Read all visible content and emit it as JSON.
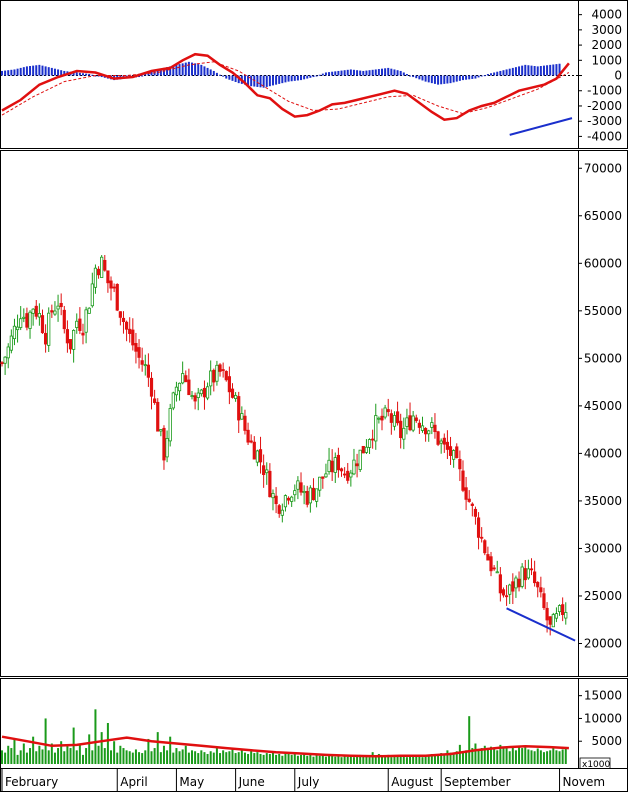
{
  "chart_data": [
    {
      "id": "macd",
      "type": "line",
      "ylim": [
        -4500,
        4700
      ],
      "yticks": [
        -4000,
        -3000,
        -2000,
        -1000,
        0,
        1000,
        2000,
        3000,
        4000
      ],
      "ytick_labels": [
        "-4000",
        "-3000",
        "-2000",
        "-1000",
        "0",
        "1000",
        "2000",
        "3000",
        "4000"
      ],
      "x_index_range": [
        0,
        183
      ],
      "series": [
        {
          "role": "macd",
          "color": "#e01010",
          "points": [
            [
              0,
              -2300
            ],
            [
              6,
              -1600
            ],
            [
              12,
              -600
            ],
            [
              18,
              -100
            ],
            [
              24,
              300
            ],
            [
              30,
              200
            ],
            [
              36,
              -200
            ],
            [
              42,
              -100
            ],
            [
              48,
              300
            ],
            [
              54,
              500
            ],
            [
              58,
              1000
            ],
            [
              62,
              1400
            ],
            [
              66,
              1300
            ],
            [
              70,
              700
            ],
            [
              74,
              200
            ],
            [
              78,
              -500
            ],
            [
              82,
              -1300
            ],
            [
              86,
              -1500
            ],
            [
              90,
              -2200
            ],
            [
              94,
              -2700
            ],
            [
              98,
              -2600
            ],
            [
              102,
              -2300
            ],
            [
              106,
              -1900
            ],
            [
              110,
              -1800
            ],
            [
              114,
              -1600
            ],
            [
              118,
              -1400
            ],
            [
              122,
              -1200
            ],
            [
              126,
              -1000
            ],
            [
              130,
              -1200
            ],
            [
              134,
              -1800
            ],
            [
              138,
              -2400
            ],
            [
              142,
              -2900
            ],
            [
              146,
              -2800
            ],
            [
              150,
              -2300
            ],
            [
              154,
              -2000
            ],
            [
              158,
              -1800
            ],
            [
              162,
              -1400
            ],
            [
              166,
              -1000
            ],
            [
              170,
              -800
            ],
            [
              174,
              -600
            ],
            [
              178,
              -200
            ],
            [
              182,
              800
            ]
          ]
        },
        {
          "role": "signal",
          "color": "#e01010",
          "dashed": true,
          "points": [
            [
              0,
              -2600
            ],
            [
              10,
              -1400
            ],
            [
              20,
              -400
            ],
            [
              30,
              0
            ],
            [
              40,
              0
            ],
            [
              50,
              200
            ],
            [
              60,
              700
            ],
            [
              68,
              900
            ],
            [
              76,
              300
            ],
            [
              84,
              -700
            ],
            [
              92,
              -1700
            ],
            [
              100,
              -2300
            ],
            [
              108,
              -2200
            ],
            [
              116,
              -1800
            ],
            [
              124,
              -1400
            ],
            [
              132,
              -1300
            ],
            [
              140,
              -2000
            ],
            [
              148,
              -2500
            ],
            [
              156,
              -2100
            ],
            [
              164,
              -1500
            ],
            [
              172,
              -900
            ],
            [
              182,
              200
            ]
          ]
        }
      ],
      "histogram_color": "#1a2fcc",
      "histogram": [
        [
          0,
          300
        ],
        [
          4,
          400
        ],
        [
          8,
          600
        ],
        [
          12,
          700
        ],
        [
          16,
          500
        ],
        [
          20,
          300
        ],
        [
          24,
          200
        ],
        [
          28,
          100
        ],
        [
          32,
          -100
        ],
        [
          36,
          -300
        ],
        [
          40,
          -200
        ],
        [
          44,
          -100
        ],
        [
          48,
          300
        ],
        [
          52,
          500
        ],
        [
          56,
          700
        ],
        [
          60,
          900
        ],
        [
          64,
          700
        ],
        [
          68,
          300
        ],
        [
          72,
          -200
        ],
        [
          76,
          -500
        ],
        [
          80,
          -700
        ],
        [
          84,
          -800
        ],
        [
          88,
          -600
        ],
        [
          92,
          -400
        ],
        [
          96,
          -300
        ],
        [
          100,
          -100
        ],
        [
          104,
          200
        ],
        [
          108,
          300
        ],
        [
          112,
          400
        ],
        [
          116,
          300
        ],
        [
          120,
          400
        ],
        [
          124,
          500
        ],
        [
          128,
          300
        ],
        [
          132,
          -100
        ],
        [
          136,
          -400
        ],
        [
          140,
          -600
        ],
        [
          144,
          -500
        ],
        [
          148,
          -300
        ],
        [
          152,
          -200
        ],
        [
          156,
          100
        ],
        [
          160,
          300
        ],
        [
          164,
          500
        ],
        [
          168,
          700
        ],
        [
          172,
          600
        ],
        [
          176,
          700
        ],
        [
          180,
          800
        ]
      ],
      "trendline": {
        "color": "#1a2fcc",
        "from": [
          163,
          -3900
        ],
        "to": [
          183,
          -2800
        ]
      }
    },
    {
      "id": "price",
      "type": "candlestick",
      "ylim": [
        17000,
        71500
      ],
      "yticks": [
        20000,
        25000,
        30000,
        35000,
        40000,
        45000,
        50000,
        55000,
        60000,
        65000,
        70000
      ],
      "ytick_labels": [
        "20000",
        "25000",
        "30000",
        "35000",
        "40000",
        "45000",
        "50000",
        "55000",
        "60000",
        "65000",
        "70000"
      ],
      "up_color": "#1a9a1a",
      "down_color": "#e01010",
      "close_path": [
        [
          0,
          49500
        ],
        [
          2,
          51000
        ],
        [
          4,
          53000
        ],
        [
          6,
          55000
        ],
        [
          8,
          54000
        ],
        [
          10,
          55500
        ],
        [
          12,
          54500
        ],
        [
          14,
          52500
        ],
        [
          16,
          55000
        ],
        [
          18,
          56000
        ],
        [
          20,
          53000
        ],
        [
          22,
          51500
        ],
        [
          24,
          54000
        ],
        [
          26,
          53500
        ],
        [
          28,
          56000
        ],
        [
          30,
          59500
        ],
        [
          32,
          60000
        ],
        [
          34,
          58000
        ],
        [
          36,
          57000
        ],
        [
          38,
          55000
        ],
        [
          40,
          53000
        ],
        [
          42,
          51500
        ],
        [
          44,
          50000
        ],
        [
          46,
          49000
        ],
        [
          48,
          47000
        ],
        [
          50,
          43000
        ],
        [
          52,
          40000
        ],
        [
          54,
          44000
        ],
        [
          56,
          47000
        ],
        [
          58,
          48500
        ],
        [
          60,
          47000
        ],
        [
          62,
          45000
        ],
        [
          64,
          46000
        ],
        [
          66,
          47500
        ],
        [
          68,
          48000
        ],
        [
          70,
          48500
        ],
        [
          72,
          47500
        ],
        [
          74,
          46000
        ],
        [
          76,
          44500
        ],
        [
          78,
          42500
        ],
        [
          80,
          41000
        ],
        [
          82,
          40000
        ],
        [
          84,
          38500
        ],
        [
          86,
          36500
        ],
        [
          88,
          34500
        ],
        [
          90,
          35000
        ],
        [
          92,
          36000
        ],
        [
          94,
          36500
        ],
        [
          96,
          36000
        ],
        [
          98,
          35500
        ],
        [
          100,
          36000
        ],
        [
          102,
          37000
        ],
        [
          104,
          38000
        ],
        [
          106,
          38500
        ],
        [
          108,
          39000
        ],
        [
          110,
          38000
        ],
        [
          112,
          38500
        ],
        [
          114,
          39500
        ],
        [
          116,
          40500
        ],
        [
          118,
          42000
        ],
        [
          120,
          43000
        ],
        [
          122,
          43500
        ],
        [
          124,
          44000
        ],
        [
          126,
          43000
        ],
        [
          128,
          42000
        ],
        [
          130,
          43000
        ],
        [
          132,
          44000
        ],
        [
          134,
          43500
        ],
        [
          136,
          43000
        ],
        [
          138,
          42500
        ],
        [
          140,
          41500
        ],
        [
          142,
          40500
        ],
        [
          144,
          40000
        ],
        [
          146,
          38500
        ],
        [
          148,
          37000
        ],
        [
          150,
          35000
        ],
        [
          152,
          33000
        ],
        [
          154,
          31000
        ],
        [
          156,
          29000
        ],
        [
          158,
          27500
        ],
        [
          160,
          25500
        ],
        [
          162,
          25000
        ],
        [
          164,
          26000
        ],
        [
          166,
          27000
        ],
        [
          168,
          27500
        ],
        [
          170,
          27000
        ],
        [
          172,
          25500
        ],
        [
          174,
          23500
        ],
        [
          176,
          21500
        ],
        [
          178,
          22500
        ],
        [
          180,
          23500
        ],
        [
          182,
          24000
        ]
      ],
      "trendline": {
        "color": "#1a2fcc",
        "from": [
          162,
          23700
        ],
        "to": [
          184,
          20300
        ]
      }
    },
    {
      "id": "volume",
      "type": "bar",
      "ylim": [
        0,
        18000
      ],
      "yticks": [
        5000,
        10000,
        15000
      ],
      "ytick_labels": [
        "5000",
        "10000",
        "15000"
      ],
      "unit_label": "x1000",
      "bar_color": "#1a9a1a",
      "ma_color": "#e01010",
      "values": [
        3000,
        2500,
        4000,
        3500,
        5500,
        2000,
        3000,
        4500,
        2500,
        3500,
        6000,
        2800,
        4000,
        3200,
        10000,
        3000,
        4500,
        2500,
        3500,
        5000,
        2800,
        4000,
        3500,
        8000,
        3000,
        4500,
        2000,
        3500,
        6500,
        3000,
        12000,
        4000,
        7000,
        3500,
        9000,
        3000,
        5000,
        2500,
        4000,
        3500,
        3000,
        2800,
        2500,
        3200,
        2600,
        2400,
        3000,
        5500,
        2800,
        3500,
        7000,
        2600,
        4000,
        3000,
        6000,
        2500,
        3500,
        2800,
        3200,
        4000,
        2500,
        3000,
        2800,
        2400,
        3000,
        2600,
        2200,
        2800,
        2500,
        3500,
        2400,
        3000,
        2600,
        2800,
        3200,
        2400,
        2600,
        3000,
        2500,
        2200,
        2800,
        2400,
        2600,
        2200,
        2000,
        2400,
        2200,
        2600,
        2000,
        2200,
        1800,
        2400,
        2200,
        2000,
        2600,
        1800,
        2000,
        2200,
        1800,
        2000,
        1600,
        2200,
        1800,
        2000,
        1600,
        1800,
        2000,
        1600,
        1800,
        1500,
        1700,
        1600,
        1800,
        1500,
        1700,
        2000,
        1600,
        1800,
        1500,
        2600,
        1800,
        2200,
        1600,
        1800,
        2000,
        1500,
        1700,
        1900,
        1600,
        1800,
        1500,
        1700,
        2000,
        1600,
        1800,
        1500,
        1700,
        1900,
        2200,
        1800,
        2000,
        2400,
        2200,
        3000,
        2500,
        2200,
        2800,
        4200,
        2600,
        3000,
        10500,
        3500,
        4500,
        3000,
        3500,
        4000,
        3200,
        3800,
        3500,
        3000,
        4200,
        3600,
        3400,
        2800,
        3600,
        3000,
        4000,
        3500,
        3800,
        3200,
        3000,
        2800,
        3400,
        3000,
        2600,
        2800,
        3000,
        3500,
        3000,
        2800,
        3200,
        3400
      ],
      "ma": [
        [
          0,
          6000
        ],
        [
          8,
          5000
        ],
        [
          16,
          4000
        ],
        [
          24,
          4200
        ],
        [
          32,
          5000
        ],
        [
          40,
          5800
        ],
        [
          48,
          5000
        ],
        [
          56,
          4500
        ],
        [
          64,
          4000
        ],
        [
          72,
          3500
        ],
        [
          80,
          3000
        ],
        [
          88,
          2600
        ],
        [
          96,
          2300
        ],
        [
          104,
          2000
        ],
        [
          112,
          1800
        ],
        [
          120,
          1700
        ],
        [
          128,
          1800
        ],
        [
          136,
          1800
        ],
        [
          144,
          2200
        ],
        [
          152,
          3000
        ],
        [
          160,
          3600
        ],
        [
          168,
          3900
        ],
        [
          176,
          3700
        ],
        [
          182,
          3500
        ]
      ]
    }
  ],
  "x_axis": {
    "months": [
      {
        "label": "February",
        "index": 0
      },
      {
        "label": "April",
        "index": 37
      },
      {
        "label": "May",
        "index": 56
      },
      {
        "label": "June",
        "index": 75
      },
      {
        "label": "July",
        "index": 94
      },
      {
        "label": "August",
        "index": 124
      },
      {
        "label": "September",
        "index": 141
      },
      {
        "label": "Novem",
        "index": 179
      }
    ]
  }
}
